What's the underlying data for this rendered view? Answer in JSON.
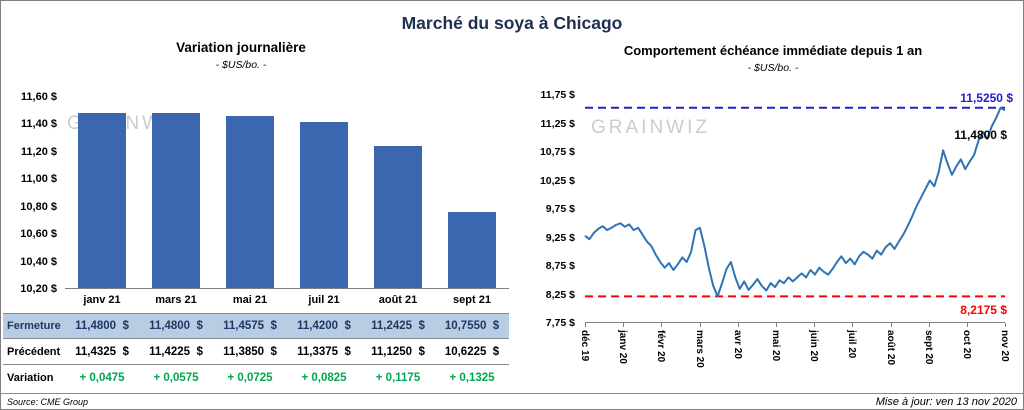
{
  "page": {
    "title": "Marché du soya à Chicago",
    "source": "Source: CME Group",
    "updated": "Mise à jour: ven 13 nov 2020",
    "watermark": "GRAINWIZ"
  },
  "colors": {
    "bar": "#3A67AE",
    "line": "#2E74B5",
    "high_line": "#2020CF",
    "low_line": "#FF0000",
    "close_row_bg": "#B8CCE4",
    "close_row_text": "#1F3864",
    "variation_green": "#00A651",
    "title_navy": "#203050"
  },
  "chart_data": [
    {
      "type": "bar",
      "title": "Variation journalière",
      "subtitle": "- $US/bo. -",
      "categories": [
        "janv 21",
        "mars 21",
        "mai 21",
        "juil 21",
        "août 21",
        "sept 21"
      ],
      "values": [
        11.48,
        11.48,
        11.4575,
        11.42,
        11.2425,
        10.755
      ],
      "ylim": [
        10.2,
        11.6
      ],
      "yticks": [
        "11,60 $",
        "11,40 $",
        "11,20 $",
        "11,00 $",
        "10,80 $",
        "10,60 $",
        "10,40 $",
        "10,20 $"
      ],
      "grid": false,
      "legend": "none"
    },
    {
      "type": "line",
      "title": "Comportement échéance immédiate depuis 1 an",
      "subtitle": "- $US/bo. -",
      "x_labels": [
        "déc 19",
        "janv 20",
        "févr 20",
        "mars 20",
        "avr 20",
        "mai 20",
        "juin 20",
        "juil 20",
        "août 20",
        "sept 20",
        "oct 20",
        "nov 20"
      ],
      "values": [
        9.28,
        9.22,
        9.33,
        9.4,
        9.45,
        9.38,
        9.42,
        9.47,
        9.5,
        9.44,
        9.48,
        9.38,
        9.42,
        9.3,
        9.18,
        9.1,
        8.95,
        8.82,
        8.72,
        8.8,
        8.68,
        8.78,
        8.9,
        8.82,
        9.0,
        9.38,
        9.42,
        9.1,
        8.72,
        8.4,
        8.22,
        8.45,
        8.7,
        8.82,
        8.55,
        8.35,
        8.48,
        8.33,
        8.42,
        8.52,
        8.4,
        8.32,
        8.45,
        8.38,
        8.5,
        8.45,
        8.55,
        8.48,
        8.55,
        8.62,
        8.55,
        8.68,
        8.6,
        8.72,
        8.65,
        8.6,
        8.7,
        8.82,
        8.92,
        8.8,
        8.88,
        8.78,
        8.92,
        9.0,
        8.95,
        8.88,
        9.02,
        8.95,
        9.08,
        9.15,
        9.05,
        9.18,
        9.3,
        9.45,
        9.62,
        9.8,
        9.95,
        10.1,
        10.25,
        10.15,
        10.4,
        10.78,
        10.55,
        10.35,
        10.5,
        10.62,
        10.45,
        10.58,
        10.7,
        10.95,
        11.1,
        10.98,
        11.2,
        11.35,
        11.525,
        11.48
      ],
      "ylim": [
        7.75,
        11.75
      ],
      "yticks": [
        "11,75 $",
        "11,25 $",
        "10,75 $",
        "10,25 $",
        "9,75 $",
        "9,25 $",
        "8,75 $",
        "8,25 $",
        "7,75 $"
      ],
      "high_line": {
        "value": 11.525,
        "label": "11,5250 $"
      },
      "close_label": {
        "value": 11.48,
        "label": "11,4800 $"
      },
      "low_line": {
        "value": 8.2175,
        "label": "8,2175 $"
      },
      "grid": false,
      "legend": "none"
    }
  ],
  "table": {
    "rows": [
      {
        "label": "Fermeture",
        "values": [
          "11,4800  $",
          "11,4800  $",
          "11,4575  $",
          "11,4200  $",
          "11,2425  $",
          "10,7550  $"
        ]
      },
      {
        "label": "Précédent",
        "values": [
          "11,4325  $",
          "11,4225  $",
          "11,3850  $",
          "11,3375  $",
          "11,1250  $",
          "10,6225  $"
        ]
      },
      {
        "label": "Variation",
        "values": [
          "+ 0,0475",
          "+ 0,0575",
          "+ 0,0725",
          "+ 0,0825",
          "+ 0,1175",
          "+ 0,1325"
        ]
      }
    ]
  }
}
